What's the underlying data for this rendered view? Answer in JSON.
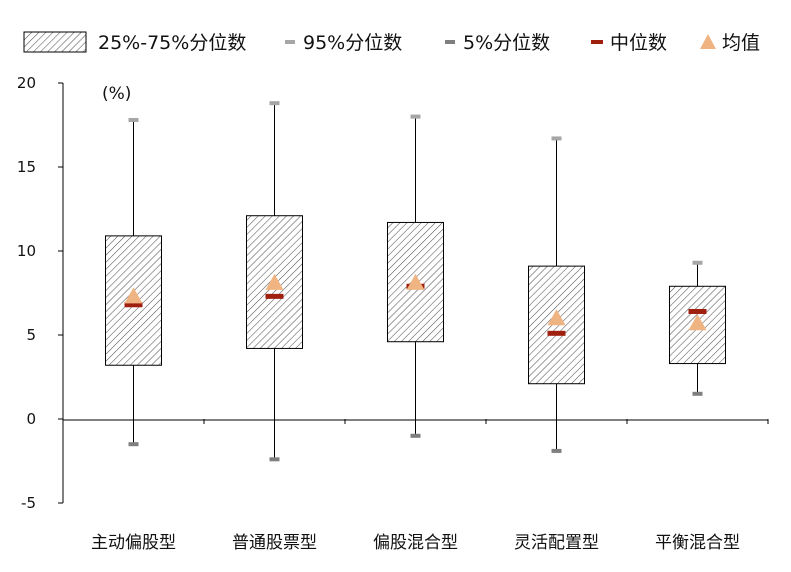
{
  "legend": {
    "iqr": "25%-75%分位数",
    "p95": "95%分位数",
    "p5": "5%分位数",
    "median": "中位数",
    "mean": "均值"
  },
  "colors": {
    "p95_cap": "#a6a6a6",
    "p5_cap": "#7f7f7f",
    "median": "#a02010",
    "mean": "#f0b482",
    "box_hatch": "#555555",
    "axis": "#000000"
  },
  "chart_data": {
    "type": "boxplot",
    "unit_label": "(%)",
    "ylim": [
      -5,
      20
    ],
    "y_ticks": [
      -5,
      0,
      5,
      10,
      15,
      20
    ],
    "grid": false,
    "legend_position": "top",
    "categories": [
      "主动偏股型",
      "普通股票型",
      "偏股混合型",
      "灵活配置型",
      "平衡混合型"
    ],
    "p5": [
      -1.5,
      -2.4,
      -1.0,
      -1.9,
      1.5
    ],
    "q1": [
      3.2,
      4.2,
      4.6,
      2.1,
      3.3
    ],
    "median": [
      6.8,
      7.3,
      7.9,
      5.1,
      6.4
    ],
    "mean": [
      7.3,
      8.1,
      8.1,
      6.0,
      5.7
    ],
    "q3": [
      10.9,
      12.1,
      11.7,
      9.1,
      7.9
    ],
    "p95": [
      17.8,
      18.8,
      18.0,
      16.7,
      9.3
    ]
  }
}
